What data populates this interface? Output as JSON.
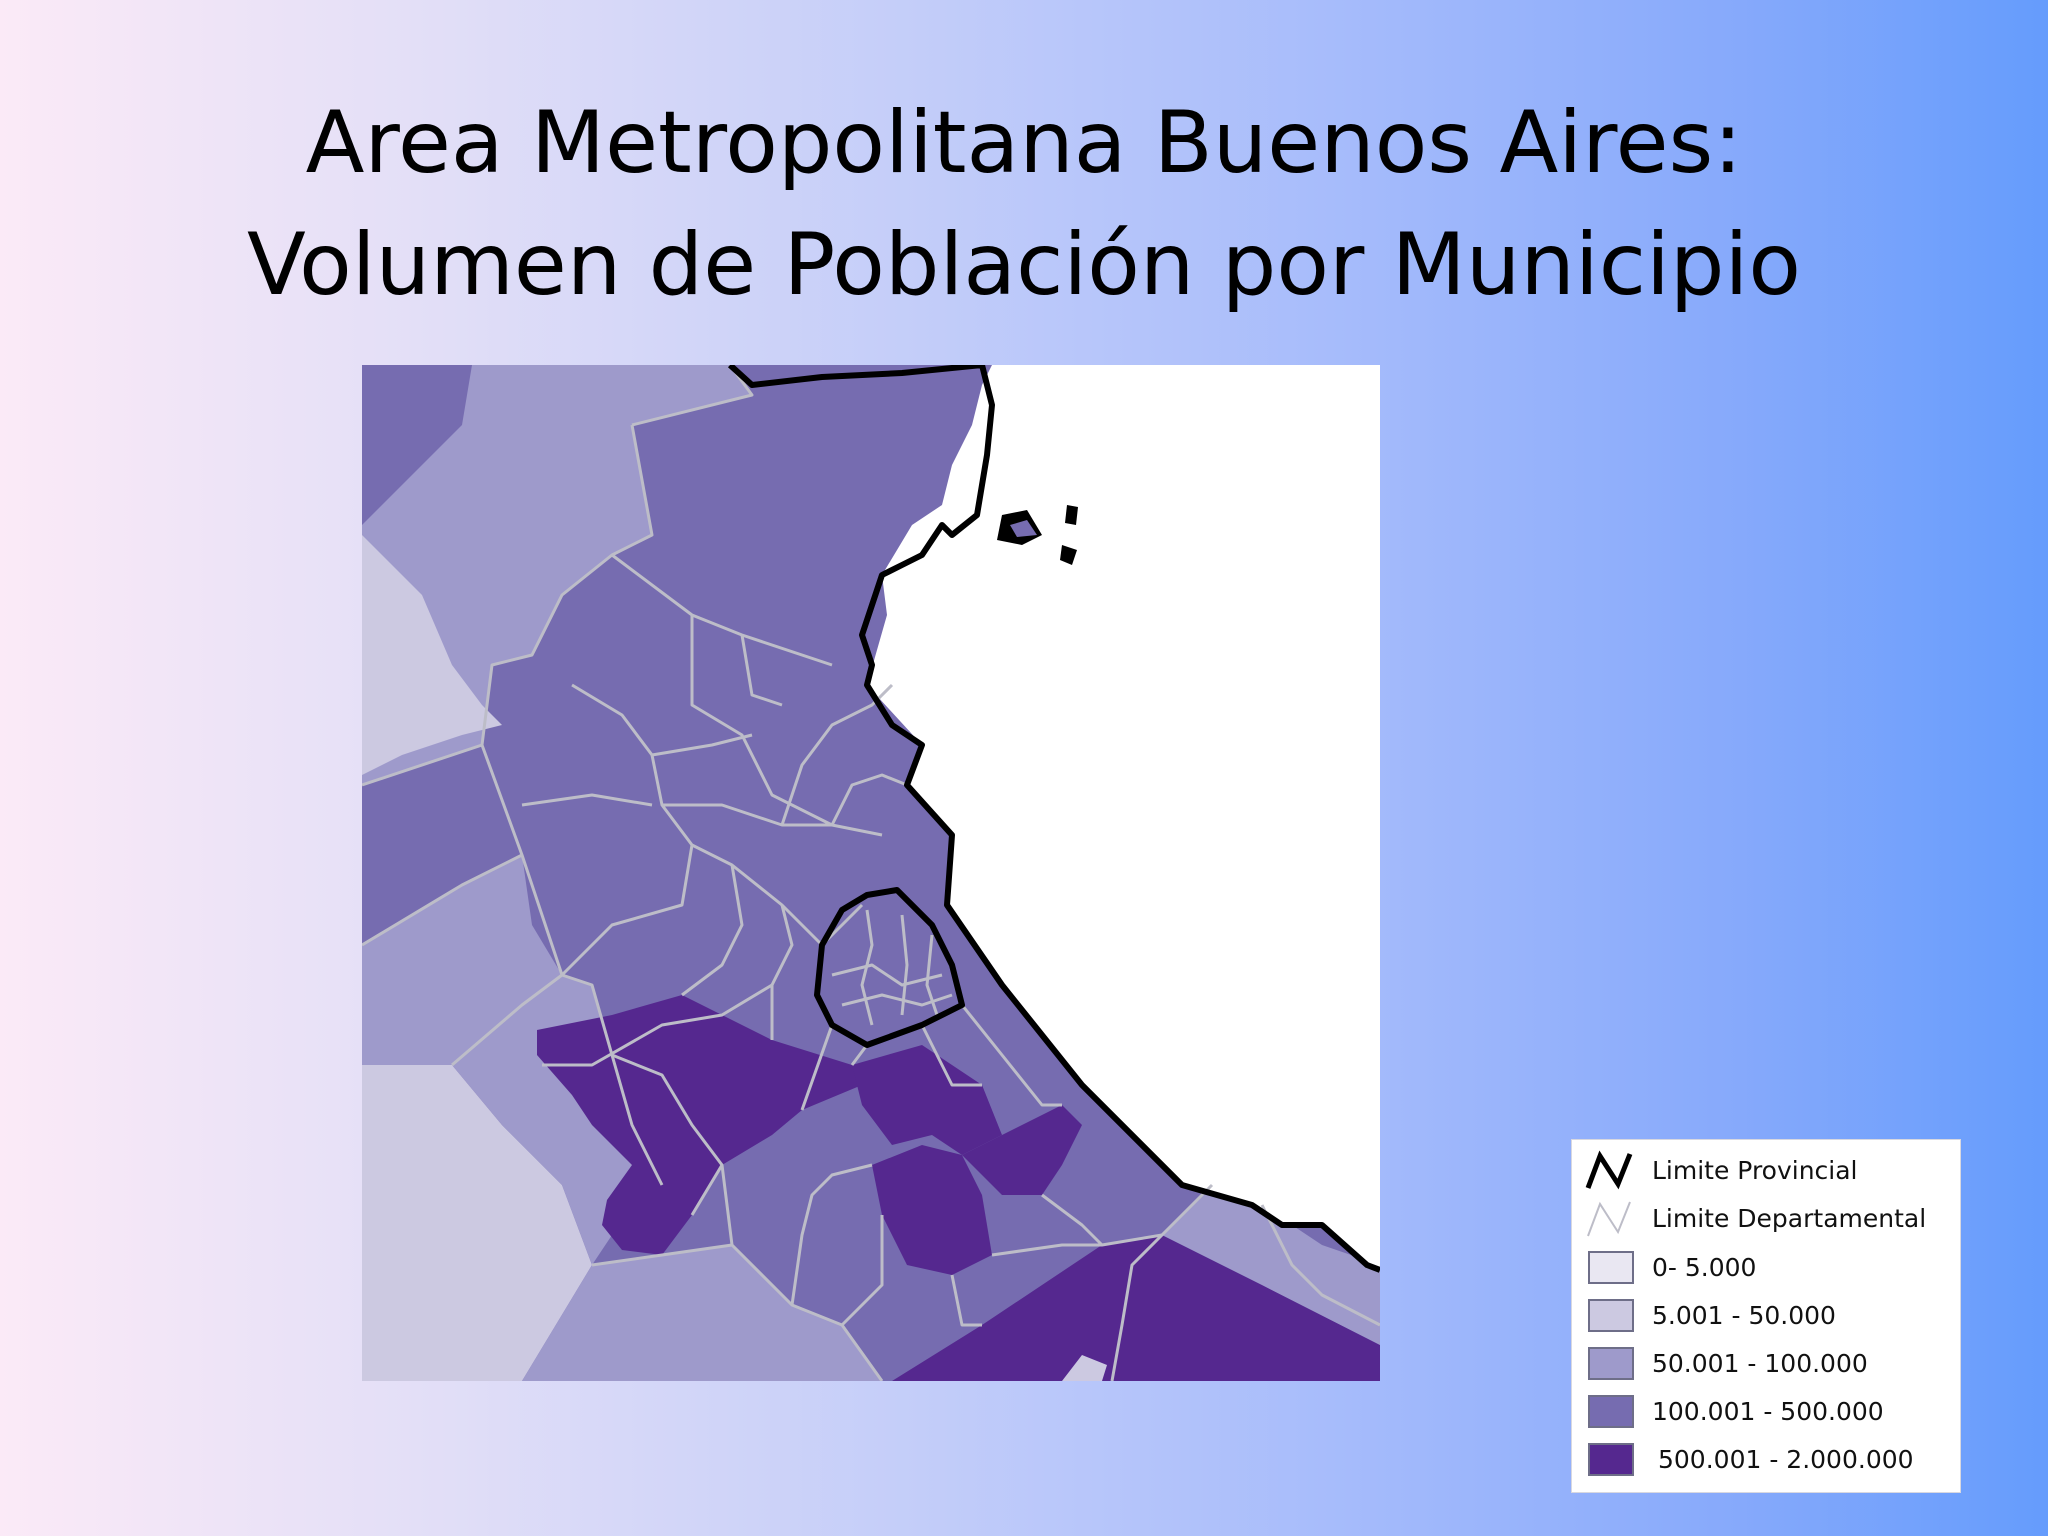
{
  "slide": {
    "title_line1": "Area Metropolitana Buenos Aires:",
    "title_line2": "Volumen de Población por Municipio"
  },
  "colors": {
    "class_0": "#e9e7f2",
    "class_1": "#ccc9e1",
    "class_2": "#9e9acb",
    "class_3": "#766cb0",
    "class_4": "#55288f",
    "water": "#ffffff",
    "provincial_border": "#000000",
    "departmental_border": "#bdbdc8"
  },
  "legend": {
    "items": [
      {
        "label": "Limite Provincial",
        "kind": "line-thick"
      },
      {
        "label": "Limite Departamental",
        "kind": "line-thin"
      },
      {
        "label": "0- 5.000",
        "kind": "swatch",
        "class": "class_0"
      },
      {
        "label": "5.001 - 50.000",
        "kind": "swatch",
        "class": "class_1"
      },
      {
        "label": "50.001 - 100.000",
        "kind": "swatch",
        "class": "class_2"
      },
      {
        "label": "100.001 - 500.000",
        "kind": "swatch",
        "class": "class_3"
      },
      {
        "label": "500.001 - 2.000.000",
        "kind": "swatch",
        "class": "class_4"
      }
    ]
  }
}
